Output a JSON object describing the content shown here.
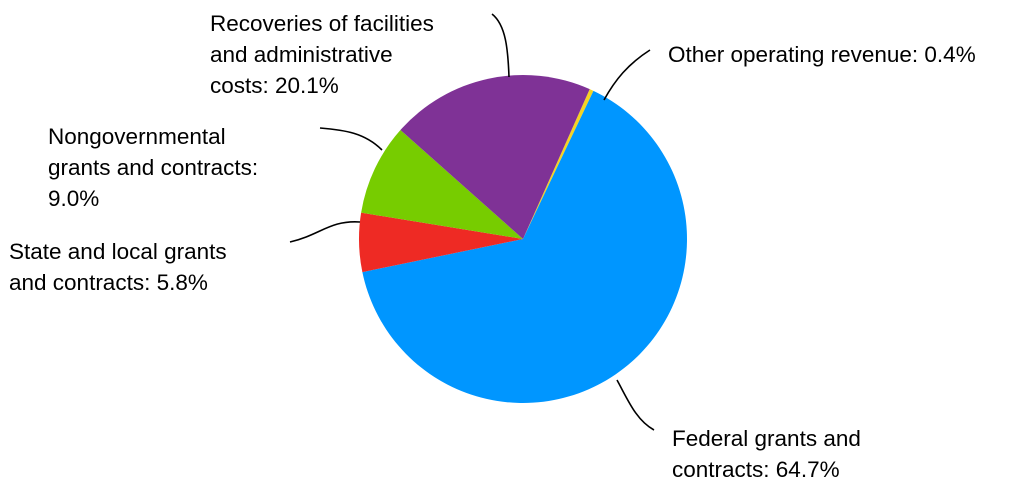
{
  "chart_data": {
    "type": "pie",
    "title": "",
    "legend": "none",
    "slices": [
      {
        "label_lines": [
          "Other operating revenue: 0.4%"
        ],
        "value": 0.4,
        "color": "#F5D323"
      },
      {
        "label_lines": [
          "Federal grants and",
          "contracts: 64.7%"
        ],
        "value": 64.7,
        "color": "#0096FF"
      },
      {
        "label_lines": [
          "State and local grants",
          "and contracts: 5.8%"
        ],
        "value": 5.8,
        "color": "#EE2A24"
      },
      {
        "label_lines": [
          "Nongovernmental",
          "grants and contracts:",
          "9.0%"
        ],
        "value": 9.0,
        "color": "#77CC00"
      },
      {
        "label_lines": [
          "Recoveries of facilities",
          "and administrative",
          "costs: 20.1%"
        ],
        "value": 20.1,
        "color": "#7F3296"
      }
    ]
  }
}
